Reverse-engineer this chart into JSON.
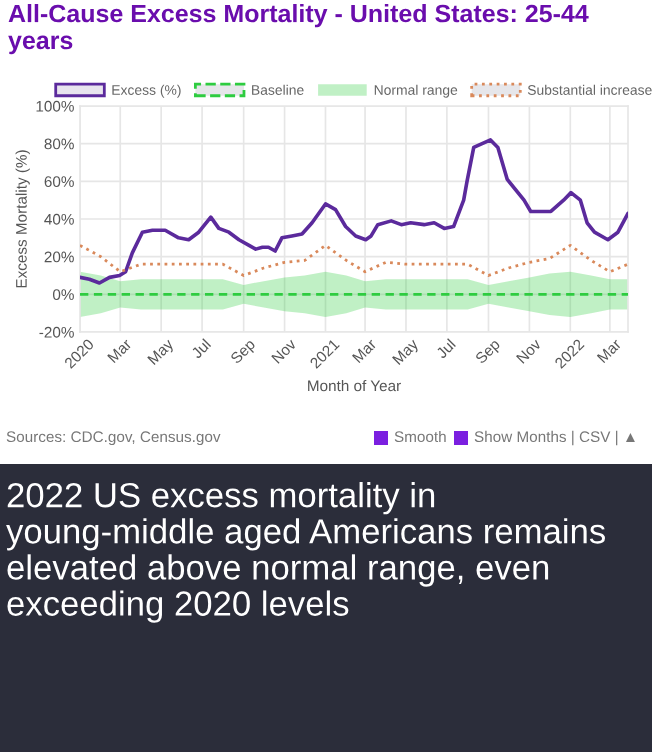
{
  "chart_data": {
    "type": "line",
    "title": "All-Cause Excess Mortality - United States: 25-44 years",
    "xlabel": "Month of Year",
    "ylabel": "Excess Mortality (%)",
    "series": [
      {
        "name": "Excess (%)",
        "color": "#5b2a9c",
        "line_style": "solid",
        "x": [
          "2020-01-01",
          "2020-01-15",
          "2020-01-30",
          "2020-02-14",
          "2020-02-29",
          "2020-03-09",
          "2020-03-19",
          "2020-04-03",
          "2020-04-18",
          "2020-05-07",
          "2020-05-27",
          "2020-06-11",
          "2020-06-26",
          "2020-07-14",
          "2020-07-26",
          "2020-08-10",
          "2020-08-25",
          "2020-09-09",
          "2020-09-19",
          "2020-09-29",
          "2020-10-08",
          "2020-10-18",
          "2020-10-28",
          "2020-11-12",
          "2020-11-27",
          "2020-12-12",
          "2021-01-01",
          "2021-01-16",
          "2021-01-31",
          "2021-02-15",
          "2021-03-02",
          "2021-03-10",
          "2021-03-20",
          "2021-04-09",
          "2021-04-24",
          "2021-05-08",
          "2021-05-28",
          "2021-06-12",
          "2021-06-27",
          "2021-07-11",
          "2021-07-26",
          "2021-07-31",
          "2021-08-10",
          "2021-09-04",
          "2021-09-15",
          "2021-09-29",
          "2021-10-24",
          "2021-11-03",
          "2021-12-03",
          "2021-12-22",
          "2022-01-02",
          "2022-01-16",
          "2022-01-26",
          "2022-02-06",
          "2022-02-26",
          "2022-03-13",
          "2022-03-28"
        ],
        "values": [
          9,
          8,
          6,
          9,
          10,
          12,
          22,
          33,
          34,
          34,
          30,
          29,
          33,
          41,
          35,
          33,
          29,
          26,
          24,
          25,
          25,
          23,
          30,
          31,
          32,
          38,
          48,
          45,
          36,
          31,
          29,
          31,
          37,
          39,
          37,
          38,
          37,
          38,
          35,
          36,
          50,
          60,
          78,
          82,
          78,
          61,
          50,
          44,
          44,
          50,
          54,
          50,
          38,
          33,
          29,
          33,
          43
        ]
      },
      {
        "name": "Baseline",
        "color": "#2ecc40",
        "line_style": "dashed",
        "values": [
          0,
          0,
          0,
          0,
          0,
          0,
          0,
          0,
          0,
          0,
          0,
          0,
          0,
          0,
          0,
          0,
          0,
          0,
          0,
          0,
          0,
          0,
          0,
          0,
          0,
          0,
          0,
          0
        ],
        "x": [
          "2020-01-01",
          "2020-02-01",
          "2020-03-01",
          "2020-04-01",
          "2020-05-01",
          "2020-06-01",
          "2020-07-01",
          "2020-08-01",
          "2020-09-01",
          "2020-10-01",
          "2020-11-01",
          "2020-12-01",
          "2021-01-01",
          "2021-02-01",
          "2021-03-01",
          "2021-04-01",
          "2021-05-01",
          "2021-06-01",
          "2021-07-01",
          "2021-08-01",
          "2021-09-01",
          "2021-10-01",
          "2021-11-01",
          "2021-12-01",
          "2022-01-01",
          "2022-02-01",
          "2022-03-01",
          "2022-03-28"
        ],
        "upper": [
          12,
          10,
          7,
          8,
          8,
          8,
          8,
          8,
          5,
          7,
          9,
          10,
          12,
          10,
          7,
          8,
          8,
          8,
          8,
          8,
          5,
          7,
          9,
          11,
          12,
          10,
          8,
          8
        ],
        "lower": [
          -12,
          -10,
          -7,
          -8,
          -8,
          -8,
          -8,
          -8,
          -5,
          -7,
          -9,
          -10,
          -12,
          -10,
          -7,
          -8,
          -8,
          -8,
          -8,
          -8,
          -5,
          -7,
          -9,
          -11,
          -12,
          -10,
          -8,
          -8
        ]
      },
      {
        "name": "Substantial increase",
        "color": "#d9895b",
        "line_style": "dotted",
        "x": [
          "2020-01-01",
          "2020-02-01",
          "2020-03-01",
          "2020-04-01",
          "2020-05-01",
          "2020-06-01",
          "2020-07-01",
          "2020-08-01",
          "2020-09-01",
          "2020-10-01",
          "2020-11-01",
          "2020-12-01",
          "2021-01-01",
          "2021-02-01",
          "2021-03-01",
          "2021-04-01",
          "2021-05-01",
          "2021-06-01",
          "2021-07-01",
          "2021-08-01",
          "2021-09-01",
          "2021-10-01",
          "2021-11-01",
          "2021-12-01",
          "2022-01-01",
          "2022-02-01",
          "2022-03-01",
          "2022-03-28"
        ],
        "values": [
          26,
          20,
          12,
          16,
          16,
          16,
          16,
          16,
          10,
          14,
          17,
          18,
          26,
          18,
          12,
          17,
          16,
          16,
          16,
          16,
          10,
          14,
          17,
          19,
          26,
          18,
          12,
          16
        ]
      }
    ],
    "xlim": [
      "2020-01-01",
      "2022-03-28"
    ],
    "xticks": [
      {
        "value": "2020-01-01",
        "label": "2020"
      },
      {
        "value": "2020-03-01",
        "label": "Mar"
      },
      {
        "value": "2020-05-01",
        "label": "May"
      },
      {
        "value": "2020-07-01",
        "label": "Jul"
      },
      {
        "value": "2020-09-01",
        "label": "Sep"
      },
      {
        "value": "2020-11-01",
        "label": "Nov"
      },
      {
        "value": "2021-01-01",
        "label": "2021"
      },
      {
        "value": "2021-03-01",
        "label": "Mar"
      },
      {
        "value": "2021-05-01",
        "label": "May"
      },
      {
        "value": "2021-07-01",
        "label": "Jul"
      },
      {
        "value": "2021-09-01",
        "label": "Sep"
      },
      {
        "value": "2021-11-01",
        "label": "Nov"
      },
      {
        "value": "2022-01-01",
        "label": "2022"
      },
      {
        "value": "2022-03-01",
        "label": "Mar"
      }
    ],
    "ylim": [
      -20,
      100
    ],
    "yticks": [
      {
        "value": -20,
        "label": "-20%"
      },
      {
        "value": 0,
        "label": "0%"
      },
      {
        "value": 20,
        "label": "20%"
      },
      {
        "value": 40,
        "label": "40%"
      },
      {
        "value": 60,
        "label": "60%"
      },
      {
        "value": 80,
        "label": "80%"
      },
      {
        "value": 100,
        "label": "100%"
      }
    ],
    "grid": true,
    "legend": "top",
    "annotations": [
      "Sources: CDC.gov, Census.gov",
      "Smooth",
      "Show Months | CSV | ▲",
      "Normal range",
      "2022 US excess mortality in young-middle aged Americans remains elevated above normal range, even exceeding 2020 levels"
    ]
  }
}
